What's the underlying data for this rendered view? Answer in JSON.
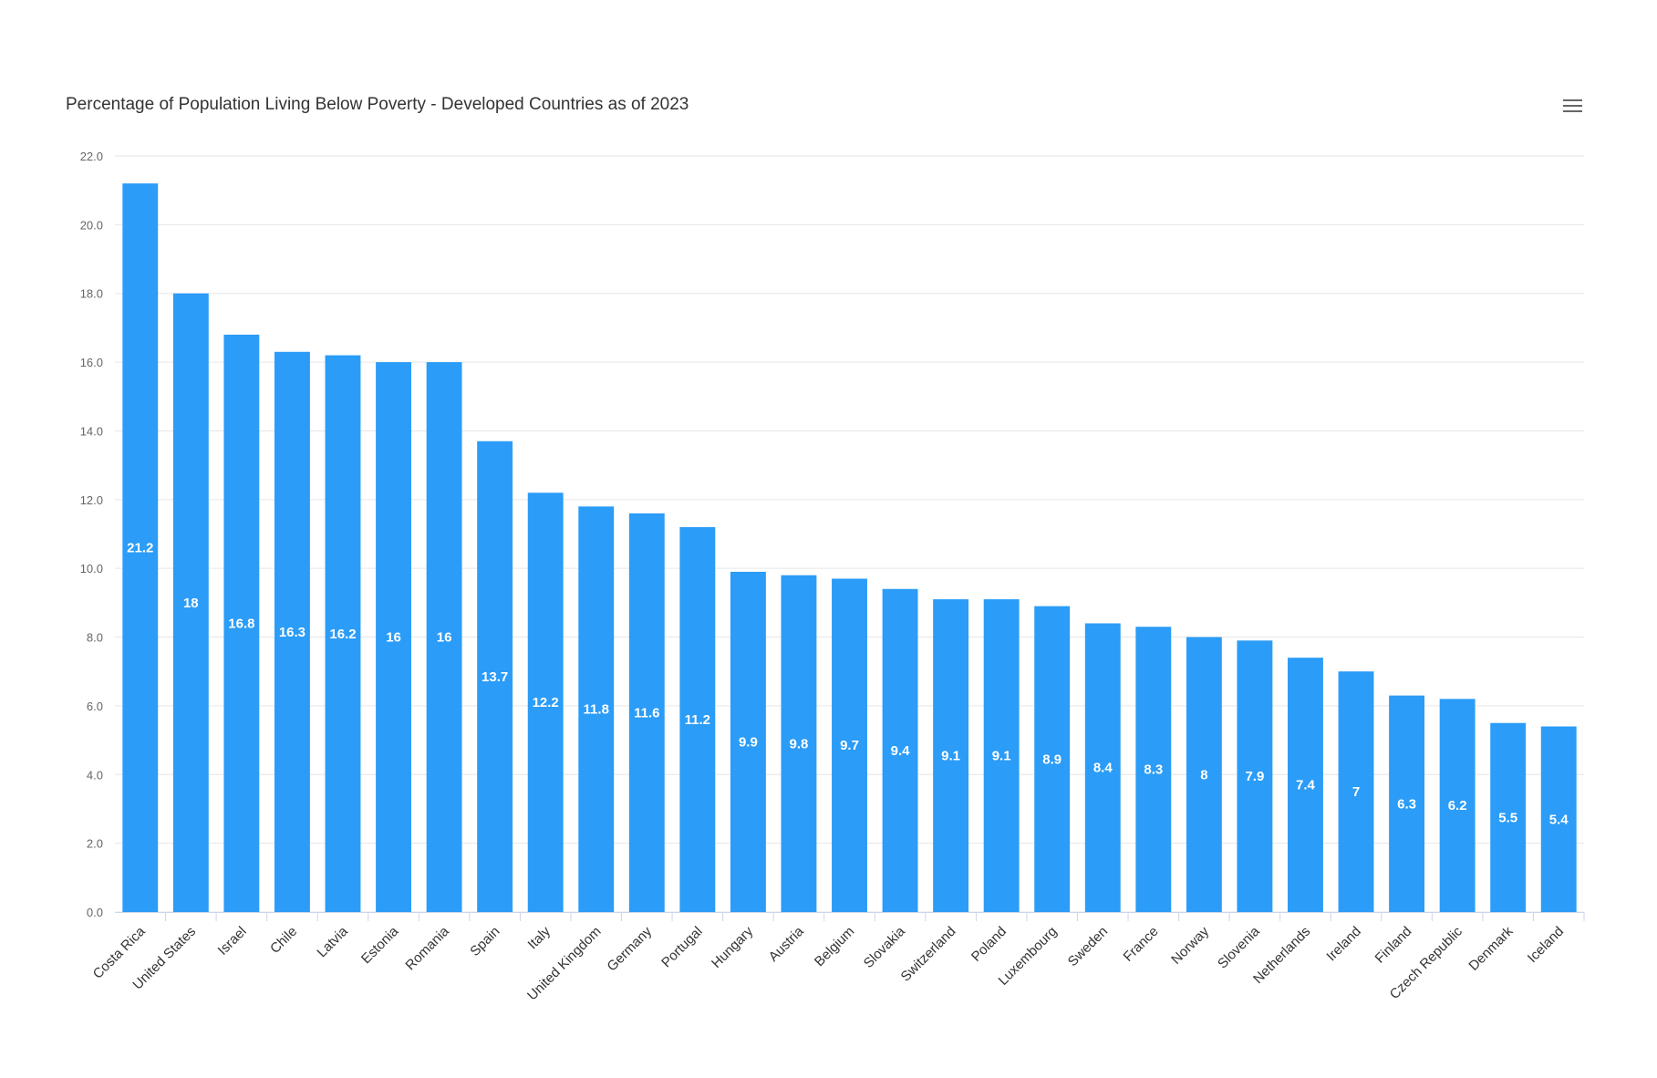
{
  "toolbar": {
    "menu_icon": "hamburger-menu-icon"
  },
  "chart_data": {
    "type": "bar",
    "title": "Percentage of Population Living Below Poverty - Developed Countries as of 2023",
    "xlabel": "",
    "ylabel": "",
    "ylim": [
      0,
      22
    ],
    "yticks": [
      "0.0",
      "2.0",
      "4.0",
      "6.0",
      "8.0",
      "10.0",
      "12.0",
      "14.0",
      "16.0",
      "18.0",
      "20.0",
      "22.0"
    ],
    "grid": true,
    "bar_color": "#2b9cf7",
    "categories": [
      "Costa Rica",
      "United States",
      "Israel",
      "Chile",
      "Latvia",
      "Estonia",
      "Romania",
      "Spain",
      "Italy",
      "United Kingdom",
      "Germany",
      "Portugal",
      "Hungary",
      "Austria",
      "Belgium",
      "Slovakia",
      "Switzerland",
      "Poland",
      "Luxembourg",
      "Sweden",
      "France",
      "Norway",
      "Slovenia",
      "Netherlands",
      "Ireland",
      "Finland",
      "Czech Republic",
      "Denmark",
      "Iceland"
    ],
    "values": [
      21.2,
      18,
      16.8,
      16.3,
      16.2,
      16,
      16,
      13.7,
      12.2,
      11.8,
      11.6,
      11.2,
      9.9,
      9.8,
      9.7,
      9.4,
      9.1,
      9.1,
      8.9,
      8.4,
      8.3,
      8,
      7.9,
      7.4,
      7,
      6.3,
      6.2,
      5.5,
      5.4
    ],
    "data_labels": [
      "21.2",
      "18",
      "16.8",
      "16.3",
      "16.2",
      "16",
      "16",
      "13.7",
      "12.2",
      "11.8",
      "11.6",
      "11.2",
      "9.9",
      "9.8",
      "9.7",
      "9.4",
      "9.1",
      "9.1",
      "8.9",
      "8.4",
      "8.3",
      "8",
      "7.9",
      "7.4",
      "7",
      "6.3",
      "6.2",
      "5.5",
      "5.4"
    ]
  }
}
